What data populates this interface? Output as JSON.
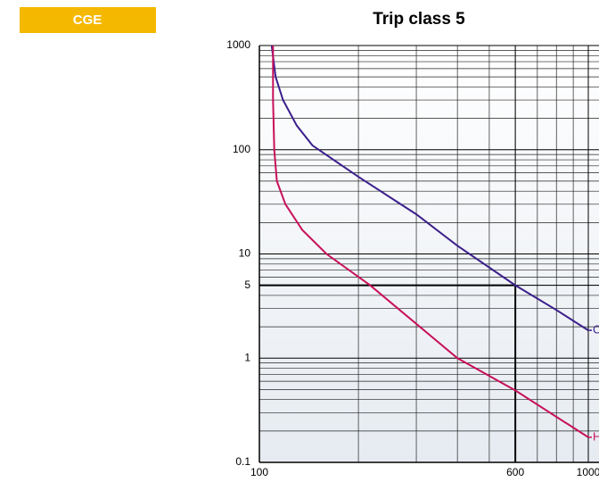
{
  "badge": "CGE",
  "chart_data": {
    "type": "line",
    "title": "Trip class 5",
    "xscale": "log",
    "yscale": "log",
    "minor_grid": true,
    "xlim": [
      100,
      1000
    ],
    "ylim": [
      0.1,
      1000
    ],
    "xticks": [
      100,
      600,
      1000
    ],
    "yticks": [
      0.1,
      1,
      5,
      10,
      100,
      1000
    ],
    "reference": {
      "x": 600,
      "y": 5
    },
    "series": [
      {
        "name": "C",
        "color": "#3b1f8c",
        "x": [
          109,
          112,
          118,
          130,
          145,
          200,
          300,
          400,
          600,
          800,
          1000
        ],
        "values": [
          1000,
          500,
          300,
          170,
          110,
          55,
          24,
          12,
          5,
          2.9,
          1.85
        ]
      },
      {
        "name": "H",
        "color": "#c8105a",
        "x": [
          110,
          110,
          111,
          113,
          120,
          135,
          160,
          217,
          400,
          600,
          1000
        ],
        "values": [
          1000,
          300,
          100,
          50,
          30,
          17,
          10,
          5,
          1,
          0.49,
          0.174
        ]
      }
    ]
  }
}
